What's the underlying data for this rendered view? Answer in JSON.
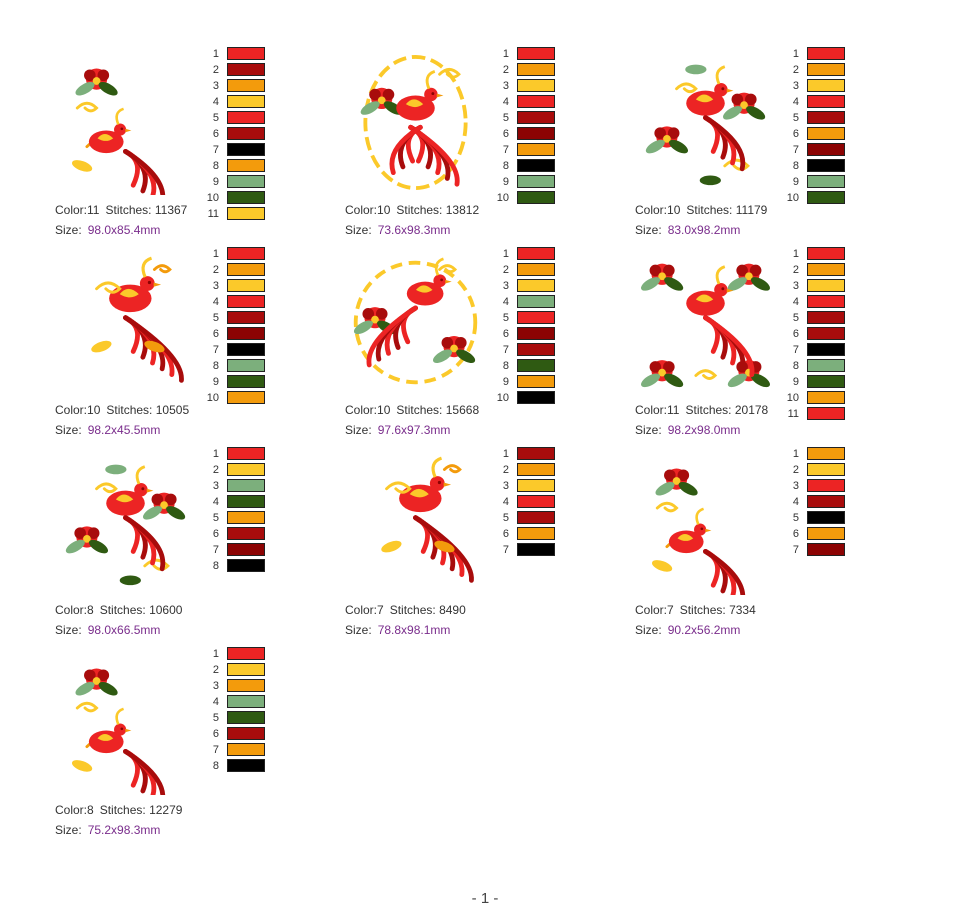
{
  "colors": {
    "red": "#ec2424",
    "orange": "#f39b0c",
    "yellow": "#fbc92a",
    "darkred": "#a80c0c",
    "maroon": "#8c0303",
    "black": "#000000",
    "sage": "#7caf7c",
    "darkgreen": "#2f5a12"
  },
  "labels": {
    "color": "Color:",
    "stitches": "Stitches:",
    "size": "Size:"
  },
  "footer": "- 1 -",
  "designs": [
    {
      "motif": "bird-corner-flower",
      "color_count": "11",
      "stitches": "11367",
      "size": "98.0x85.4mm",
      "palette": [
        "red",
        "darkred",
        "orange",
        "yellow",
        "red",
        "darkred",
        "black",
        "orange",
        "sage",
        "darkgreen",
        "yellow"
      ]
    },
    {
      "motif": "bird-oval-wreath",
      "color_count": "10",
      "stitches": "13812",
      "size": "73.6x98.3mm",
      "palette": [
        "red",
        "orange",
        "yellow",
        "red",
        "darkred",
        "maroon",
        "orange",
        "black",
        "sage",
        "darkgreen"
      ]
    },
    {
      "motif": "bird-diamond-flowers",
      "color_count": "10",
      "stitches": "11179",
      "size": "83.0x98.2mm",
      "palette": [
        "red",
        "orange",
        "yellow",
        "red",
        "darkred",
        "orange",
        "maroon",
        "black",
        "sage",
        "darkgreen"
      ]
    },
    {
      "motif": "bird-horizontal-border",
      "color_count": "10",
      "stitches": "10505",
      "size": "98.2x45.5mm",
      "palette": [
        "red",
        "orange",
        "yellow",
        "red",
        "darkred",
        "maroon",
        "black",
        "sage",
        "darkgreen",
        "orange"
      ]
    },
    {
      "motif": "bird-round-wreath",
      "color_count": "10",
      "stitches": "15668",
      "size": "97.6x97.3mm",
      "palette": [
        "red",
        "orange",
        "yellow",
        "sage",
        "red",
        "maroon",
        "darkred",
        "darkgreen",
        "orange",
        "black"
      ]
    },
    {
      "motif": "bird-square-floral",
      "color_count": "11",
      "stitches": "20178",
      "size": "98.2x98.0mm",
      "palette": [
        "red",
        "orange",
        "yellow",
        "red",
        "darkred",
        "darkred",
        "black",
        "sage",
        "darkgreen",
        "orange",
        "red"
      ]
    },
    {
      "motif": "bird-triangle-spray",
      "color_count": "8",
      "stitches": "10600",
      "size": "98.0x66.5mm",
      "palette": [
        "red",
        "yellow",
        "sage",
        "darkgreen",
        "orange",
        "darkred",
        "maroon",
        "black"
      ]
    },
    {
      "motif": "bird-standing-tail",
      "color_count": "7",
      "stitches": "8490",
      "size": "78.8x98.1mm",
      "palette": [
        "darkred",
        "orange",
        "yellow",
        "red",
        "darkred",
        "orange",
        "black"
      ]
    },
    {
      "motif": "bird-long-tail",
      "color_count": "7",
      "stitches": "7334",
      "size": "90.2x56.2mm",
      "palette": [
        "orange",
        "yellow",
        "red",
        "darkred",
        "black",
        "orange",
        "maroon"
      ]
    },
    {
      "motif": "bird-flower-vertical",
      "color_count": "8",
      "stitches": "12279",
      "size": "75.2x98.3mm",
      "palette": [
        "red",
        "yellow",
        "orange",
        "sage",
        "darkgreen",
        "darkred",
        "orange",
        "black"
      ]
    }
  ]
}
